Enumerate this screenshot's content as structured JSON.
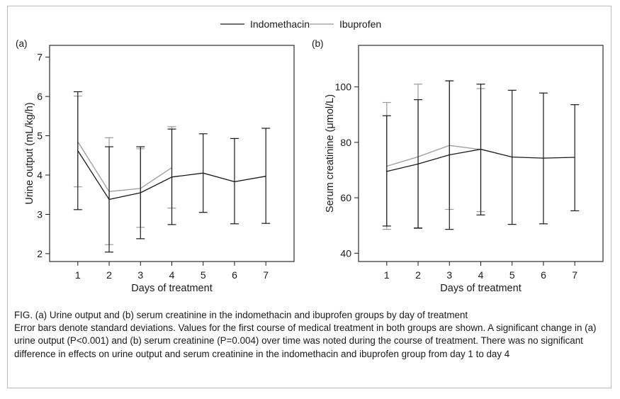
{
  "legend": [
    {
      "name": "Indomethacin",
      "color": "#1a1a1a"
    },
    {
      "name": "Ibuprofen",
      "color": "#9a9a9a"
    }
  ],
  "chart_data": [
    {
      "type": "line",
      "panel_label": "(a)",
      "xlabel": "Days of treatment",
      "ylabel": "Urine output (mL/kg/h)",
      "x": [
        1,
        2,
        3,
        4,
        5,
        6,
        7
      ],
      "xlim": [
        0.1,
        7.9
      ],
      "ylim": [
        1.8,
        7.3
      ],
      "yticks": [
        2,
        3,
        4,
        5,
        6,
        7
      ],
      "error_bars": "standard deviation",
      "series": [
        {
          "name": "Indomethacin",
          "color": "#1a1a1a",
          "x": [
            1,
            2,
            3,
            4,
            5,
            6,
            7
          ],
          "values": [
            4.62,
            3.38,
            3.55,
            3.95,
            4.05,
            3.83,
            3.97
          ],
          "lower": [
            3.12,
            2.04,
            2.38,
            2.74,
            3.05,
            2.76,
            2.77
          ],
          "upper": [
            6.12,
            4.72,
            4.72,
            5.17,
            5.05,
            4.93,
            5.19
          ]
        },
        {
          "name": "Ibuprofen",
          "color": "#9a9a9a",
          "x": [
            1,
            2,
            3,
            4
          ],
          "values": [
            4.85,
            3.58,
            3.66,
            4.19
          ],
          "lower": [
            3.7,
            2.23,
            2.67,
            3.16
          ],
          "upper": [
            6.01,
            4.95,
            4.67,
            5.23
          ]
        }
      ]
    },
    {
      "type": "line",
      "panel_label": "(b)",
      "xlabel": "Days of treatment",
      "ylabel": "Serum creatinine (μmol/L)",
      "x": [
        1,
        2,
        3,
        4,
        5,
        6,
        7
      ],
      "xlim": [
        0.1,
        7.9
      ],
      "ylim": [
        37,
        115
      ],
      "yticks": [
        40,
        60,
        80,
        100
      ],
      "error_bars": "standard deviation",
      "series": [
        {
          "name": "Indomethacin",
          "color": "#1a1a1a",
          "x": [
            1,
            2,
            3,
            4,
            5,
            6,
            7
          ],
          "values": [
            69.5,
            72.2,
            75.5,
            77.5,
            74.7,
            74.3,
            74.6
          ],
          "lower": [
            49.8,
            49.1,
            48.6,
            53.8,
            50.4,
            50.6,
            55.3
          ],
          "upper": [
            89.6,
            95.4,
            102.2,
            101.0,
            98.8,
            97.8,
            93.6
          ]
        },
        {
          "name": "Ibuprofen",
          "color": "#9a9a9a",
          "x": [
            1,
            2,
            3,
            4
          ],
          "values": [
            71.4,
            74.8,
            78.9,
            77.4
          ],
          "lower": [
            48.6,
            48.9,
            55.8,
            55.0
          ],
          "upper": [
            94.4,
            101.0,
            102.2,
            99.4
          ]
        }
      ]
    }
  ],
  "caption": {
    "title": "FIG. (a) Urine output and (b) serum creatinine in the indomethacin and ibuprofen groups by day of treatment",
    "body": "Error bars denote standard deviations. Values for the first course of medical treatment in both groups are shown. A significant change in (a) urine output (P<0.001) and (b) serum creatinine (P=0.004) over time was noted during the course of treatment. There was no significant difference in effects on urine output and serum creatinine in the indomethacin and ibuprofen group from day 1 to day 4"
  }
}
